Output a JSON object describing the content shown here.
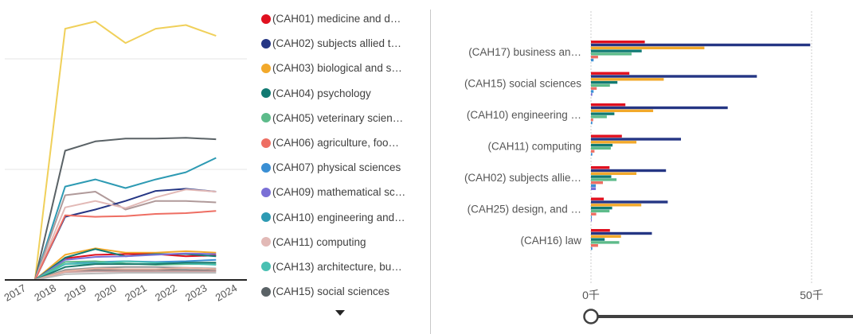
{
  "line_chart": {
    "years": [
      "2017",
      "2018",
      "2019",
      "2020",
      "2021",
      "2022",
      "2023",
      "2024"
    ]
  },
  "legend": {
    "items": [
      {
        "label": "(CAH01) medicine and d…",
        "color": "#e0101f"
      },
      {
        "label": "(CAH02) subjects allied t…",
        "color": "#253684"
      },
      {
        "label": "(CAH03) biological and s…",
        "color": "#f2a92b"
      },
      {
        "label": "(CAH04) psychology",
        "color": "#117a72"
      },
      {
        "label": "(CAH05) veterinary scien…",
        "color": "#5dbb8a"
      },
      {
        "label": "(CAH06) agriculture, foo…",
        "color": "#ee6e63"
      },
      {
        "label": "(CAH07) physical sciences",
        "color": "#3a8fd4"
      },
      {
        "label": "(CAH09) mathematical sc…",
        "color": "#7a6fd6"
      },
      {
        "label": "(CAH10) engineering and…",
        "color": "#2d9ab3"
      },
      {
        "label": "(CAH11) computing",
        "color": "#e2b9b6"
      },
      {
        "label": "(CAH13) architecture, bu…",
        "color": "#49c0b2"
      },
      {
        "label": "(CAH15) social sciences",
        "color": "#5a6266"
      }
    ]
  },
  "bar_chart": {
    "tick_labels": [
      "0千",
      "50千"
    ]
  },
  "chart_data": [
    {
      "type": "line",
      "x": [
        "2017",
        "2018",
        "2019",
        "2020",
        "2021",
        "2022",
        "2023",
        "2024"
      ],
      "ylim": [
        0,
        37
      ],
      "grid": true,
      "series": [
        {
          "color": "#f0d05a",
          "values": [
            0,
            0,
            35,
            36,
            33,
            35,
            35.5,
            34
          ]
        },
        {
          "color": "#5a6266",
          "values": [
            0,
            0,
            18,
            19.3,
            19.7,
            19.7,
            19.8,
            19.6
          ]
        },
        {
          "color": "#2d9ab3",
          "values": [
            0,
            0,
            13,
            14,
            12.8,
            14,
            15,
            17
          ]
        },
        {
          "color": "#b09a9a",
          "values": [
            0,
            0,
            11.8,
            12.3,
            9.8,
            11,
            11,
            10.8
          ]
        },
        {
          "color": "#253684",
          "values": [
            0,
            0,
            8.8,
            9.8,
            11,
            12.4,
            12.7,
            12.3
          ]
        },
        {
          "color": "#e2b9b6",
          "values": [
            0,
            0,
            10.1,
            11,
            10,
            11.5,
            12.6,
            12.3
          ]
        },
        {
          "color": "#ee6e63",
          "values": [
            0,
            0,
            9,
            8.8,
            8.9,
            9.2,
            9.3,
            9.6
          ]
        },
        {
          "color": "#f2a92b",
          "values": [
            0,
            0,
            3.5,
            4.4,
            3.8,
            3.8,
            4,
            3.8
          ]
        },
        {
          "color": "#e0101f",
          "values": [
            0,
            0,
            3,
            3.5,
            3.6,
            3.6,
            3.3,
            3.4
          ]
        },
        {
          "color": "#117a72",
          "values": [
            0,
            0,
            3.1,
            4.3,
            3.3,
            3.6,
            3.6,
            3.3
          ]
        },
        {
          "color": "#7a6fd6",
          "values": [
            0,
            0,
            2.8,
            3.2,
            3.3,
            3.5,
            3.7,
            3.6
          ]
        },
        {
          "color": "#3a8fd4",
          "values": [
            0,
            0,
            2.2,
            2.5,
            2.6,
            2.5,
            2.6,
            2.8
          ]
        },
        {
          "color": "#5dbb8a",
          "values": [
            0,
            0,
            2.5,
            2.6,
            2.3,
            2.1,
            2.2,
            2.2
          ]
        },
        {
          "color": "#49c0b2",
          "values": [
            0,
            0,
            2.2,
            2.3,
            2.6,
            2.4,
            2.3,
            2.1
          ]
        },
        {
          "color": "#1a7a6e",
          "values": [
            0,
            0,
            1.8,
            2.2,
            2.2,
            2.2,
            2.4,
            2.4
          ]
        },
        {
          "color": "#999999",
          "values": [
            0,
            0,
            1.4,
            1.7,
            1.8,
            1.8,
            1.7,
            1.6
          ]
        },
        {
          "color": "#7a7a7a",
          "values": [
            0,
            0,
            1.2,
            1.4,
            1.3,
            1.4,
            1.4,
            1.3
          ]
        },
        {
          "color": "#c9a0a0",
          "values": [
            0,
            0,
            1.1,
            1.2,
            1.2,
            1.2,
            1.2,
            1.2
          ]
        },
        {
          "color": "#e8b0a0",
          "values": [
            0,
            0,
            1.2,
            1.6,
            1.5,
            1.5,
            1.7,
            1.5
          ]
        },
        {
          "color": "#bbbbbb",
          "values": [
            0,
            0,
            0.8,
            0.9,
            1,
            1,
            1,
            1
          ]
        }
      ]
    },
    {
      "type": "bar",
      "orientation": "horizontal",
      "categories": [
        "(CAH17) business an…",
        "(CAH15) social sciences",
        "(CAH10) engineering …",
        "(CAH11) computing",
        "(CAH02) subjects allie…",
        "(CAH25) design, and …",
        "(CAH16) law"
      ],
      "xlim": [
        0,
        50000
      ],
      "series": [
        {
          "color": "#e0101f",
          "values": [
            12200,
            8700,
            7800,
            7000,
            4200,
            2900,
            4300
          ]
        },
        {
          "color": "#253684",
          "values": [
            49700,
            37600,
            31000,
            20400,
            17000,
            17400,
            13800
          ]
        },
        {
          "color": "#f2a92b",
          "values": [
            25700,
            16500,
            14100,
            10300,
            10300,
            11400,
            6800
          ]
        },
        {
          "color": "#117a72",
          "values": [
            11500,
            6000,
            5300,
            4900,
            4600,
            4800,
            3100
          ]
        },
        {
          "color": "#5dbb8a",
          "values": [
            9200,
            4300,
            3600,
            4500,
            5800,
            4200,
            6400
          ]
        },
        {
          "color": "#ee6e63",
          "values": [
            1600,
            1300,
            500,
            800,
            2700,
            1200,
            1600
          ]
        },
        {
          "color": "#3a8fd4",
          "values": [
            600,
            600,
            300,
            300,
            1100,
            200,
            300
          ]
        },
        {
          "color": "#7a6fd6",
          "values": [
            0,
            300,
            0,
            0,
            1100,
            100,
            0
          ]
        }
      ]
    }
  ]
}
